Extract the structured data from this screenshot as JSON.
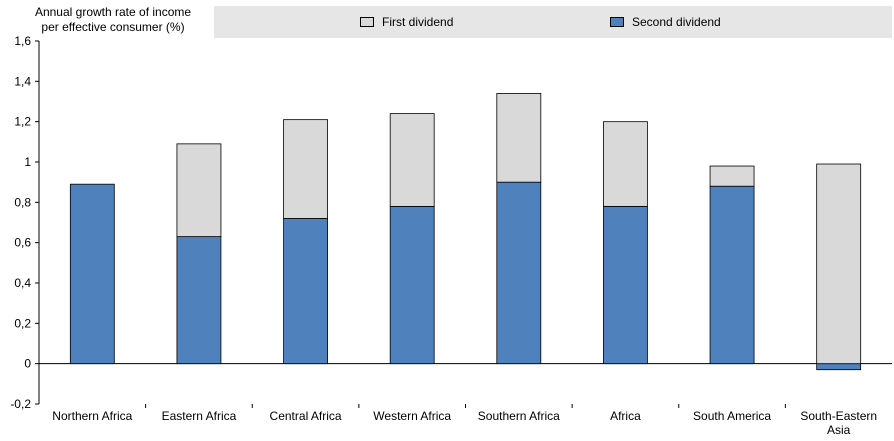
{
  "chart_data": {
    "type": "bar",
    "stacked": true,
    "ylabel": "Annual growth rate of income per effective consumer (%)",
    "xlabel": "",
    "ylim": [
      -0.2,
      1.6
    ],
    "yticks": [
      "1,6",
      "1,4",
      "1,2",
      "1",
      "0,8",
      "0,6",
      "0,4",
      "0,2",
      "0",
      "-0,2"
    ],
    "ytick_values": [
      1.6,
      1.4,
      1.2,
      1.0,
      0.8,
      0.6,
      0.4,
      0.2,
      0.0,
      -0.2
    ],
    "grid": false,
    "legend_position": "top",
    "categories": [
      "Northern Africa",
      "Eastern Africa",
      "Central Africa",
      "Western Africa",
      "Southern Africa",
      "Africa",
      "South America",
      "South-Eastern Asia"
    ],
    "series": [
      {
        "name": "Second dividend",
        "color": "#4f81bd",
        "values": [
          0.89,
          0.63,
          0.72,
          0.78,
          0.9,
          0.78,
          0.88,
          -0.03
        ]
      },
      {
        "name": "First dividend",
        "color": "#d9d9d9",
        "values": [
          0.0,
          0.46,
          0.49,
          0.46,
          0.44,
          0.42,
          0.1,
          0.99
        ]
      }
    ]
  },
  "labels": {
    "ylabel_line1": "Annual growth rate of income",
    "ylabel_line2": "per effective consumer (%)",
    "legend_first": "First dividend",
    "legend_second": "Second dividend"
  }
}
